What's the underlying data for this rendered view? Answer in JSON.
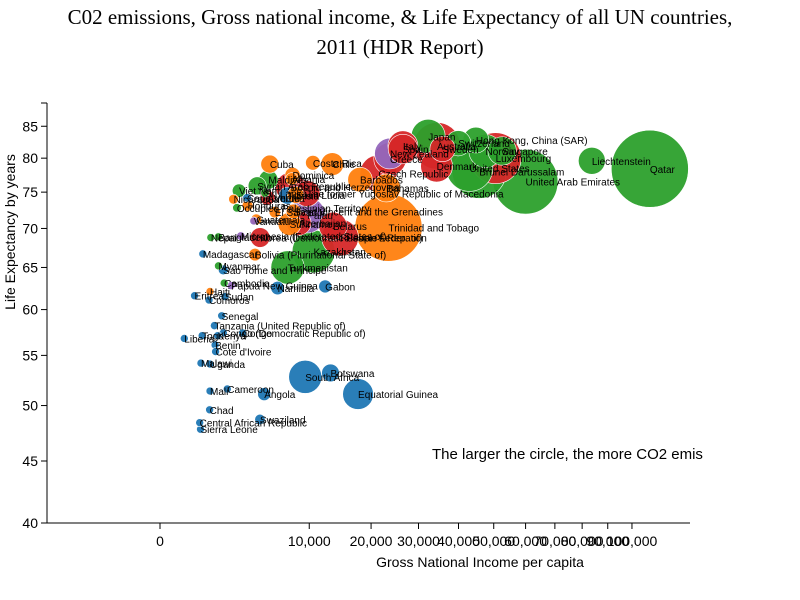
{
  "chart_data": {
    "type": "scatter",
    "title_line1": "C02 emissions, Gross national income, & Life Expectancy of all UN countries,",
    "title_line2": "2011 (HDR Report)",
    "xlabel": "Gross National Income per capita",
    "ylabel": "Life Expectancy by years",
    "annotation": "The larger the circle, the more CO2 emis",
    "y_ticks": [
      40,
      45,
      50,
      55,
      60,
      65,
      70,
      75,
      80,
      85
    ],
    "x_ticks": [
      0,
      10000,
      20000,
      30000,
      40000,
      50000,
      60000,
      70000,
      80000,
      90000,
      100000
    ],
    "x_tick_labels": [
      "0",
      "10,000",
      "20,000",
      "30,000",
      "40,000",
      "50,000",
      "60,000",
      "70,000",
      "80,000",
      "90,000",
      "100,000"
    ],
    "colors": {
      "blue": "#1f77b4",
      "green": "#2ca02c",
      "orange": "#ff7f0e",
      "red": "#d62728",
      "purple": "#9467bd"
    },
    "points": [
      {
        "name": "Japan",
        "gni": 32295,
        "life": 83.4,
        "co2": 9.5,
        "color": "green"
      },
      {
        "name": "Hong Kong, China (SAR)",
        "gni": 44805,
        "life": 82.8,
        "co2": 5.5,
        "color": "green"
      },
      {
        "name": "Switzerland",
        "gni": 39924,
        "life": 82.3,
        "co2": 5.3,
        "color": "green"
      },
      {
        "name": "Italy",
        "gni": 26484,
        "life": 81.9,
        "co2": 7.4,
        "color": "red"
      },
      {
        "name": "Australia",
        "gni": 34431,
        "life": 81.9,
        "co2": 18.1,
        "color": "red"
      },
      {
        "name": "Spain",
        "gni": 26508,
        "life": 81.4,
        "co2": 7.2,
        "color": "red"
      },
      {
        "name": "Singapore",
        "gni": 52569,
        "life": 81.1,
        "co2": 6.7,
        "color": "green"
      },
      {
        "name": "Sweden",
        "gni": 35837,
        "life": 81.4,
        "co2": 5.3,
        "color": "red"
      },
      {
        "name": "Norway",
        "gni": 47557,
        "life": 81.1,
        "co2": 9.1,
        "color": "green"
      },
      {
        "name": "New Zealand",
        "gni": 23737,
        "life": 80.7,
        "co2": 7.8,
        "color": "purple"
      },
      {
        "name": "Greece",
        "gni": 23747,
        "life": 79.9,
        "co2": 8.7,
        "color": "red"
      },
      {
        "name": "Luxembourg",
        "gni": 50557,
        "life": 80.0,
        "co2": 21.5,
        "color": "red"
      },
      {
        "name": "Liechtenstein",
        "gni": 83717,
        "life": 79.6,
        "co2": 6.0,
        "color": "green"
      },
      {
        "name": "Qatar",
        "gni": 107721,
        "life": 78.4,
        "co2": 49.1,
        "color": "green"
      },
      {
        "name": "Costa Rica",
        "gni": 10497,
        "life": 79.3,
        "co2": 1.8,
        "color": "orange"
      },
      {
        "name": "Chile",
        "gni": 13329,
        "life": 79.1,
        "co2": 4.3,
        "color": "orange"
      },
      {
        "name": "United States",
        "gni": 43017,
        "life": 78.5,
        "co2": 17.9,
        "color": "green"
      },
      {
        "name": "Brunei Darussalam",
        "gni": 45753,
        "life": 78.0,
        "co2": 24.0,
        "color": "green"
      },
      {
        "name": "Denmark",
        "gni": 34347,
        "life": 78.8,
        "co2": 8.4,
        "color": "red"
      },
      {
        "name": "Czech Republic",
        "gni": 21405,
        "life": 77.7,
        "co2": 11.2,
        "color": "red"
      },
      {
        "name": "United Arab Emirates",
        "gni": 59993,
        "life": 76.5,
        "co2": 34.6,
        "color": "green"
      },
      {
        "name": "Cuba",
        "gni": 5416,
        "life": 79.1,
        "co2": 2.7,
        "color": "orange"
      },
      {
        "name": "Dominica",
        "gni": 7889,
        "life": 77.5,
        "co2": 1.9,
        "color": "orange"
      },
      {
        "name": "Albania",
        "gni": 7803,
        "life": 76.9,
        "co2": 1.3,
        "color": "orange"
      },
      {
        "name": "Maldives",
        "gni": 5276,
        "life": 76.8,
        "co2": 3.0,
        "color": "green"
      },
      {
        "name": "Barbados",
        "gni": 17966,
        "life": 76.8,
        "co2": 5.0,
        "color": "orange"
      },
      {
        "name": "Syrian Arab Republic",
        "gni": 4243,
        "life": 75.9,
        "co2": 2.7,
        "color": "green"
      },
      {
        "name": "Bosnia and Herzegovina",
        "gni": 7664,
        "life": 75.7,
        "co2": 7.4,
        "color": "red"
      },
      {
        "name": "Bahamas",
        "gni": 23029,
        "life": 75.6,
        "co2": 6.5,
        "color": "orange"
      },
      {
        "name": "The former Yugoslav Republic of Macedonia",
        "gni": 9697,
        "life": 74.8,
        "co2": 5.6,
        "color": "red"
      },
      {
        "name": "Viet Nam",
        "gni": 2805,
        "life": 75.2,
        "co2": 1.5,
        "color": "green"
      },
      {
        "name": "Sri Lanka",
        "gni": 4943,
        "life": 74.9,
        "co2": 0.6,
        "color": "green"
      },
      {
        "name": "Cape Verde",
        "gni": 3402,
        "life": 74.2,
        "co2": 0.6,
        "color": "blue"
      },
      {
        "name": "Nicaragua",
        "gni": 2430,
        "life": 74.0,
        "co2": 0.8,
        "color": "orange"
      },
      {
        "name": "Honduras",
        "gni": 3443,
        "life": 73.1,
        "co2": 1.0,
        "color": "orange"
      },
      {
        "name": "Armenia",
        "gni": 5188,
        "life": 74.2,
        "co2": 1.8,
        "color": "red"
      },
      {
        "name": "Tunisia",
        "gni": 7281,
        "life": 74.5,
        "co2": 2.4,
        "color": "blue"
      },
      {
        "name": "Saint Lucia",
        "gni": 8273,
        "life": 74.6,
        "co2": 2.3,
        "color": "orange"
      },
      {
        "name": "Occupied Palestinian Territory",
        "gni": 2656,
        "life": 72.8,
        "co2": 0.6,
        "color": "green"
      },
      {
        "name": "El Salvador",
        "gni": 5925,
        "life": 72.2,
        "co2": 1.1,
        "color": "orange"
      },
      {
        "name": "Saint Vincent and the Grenadines",
        "gni": 8013,
        "life": 72.3,
        "co2": 1.8,
        "color": "orange"
      },
      {
        "name": "Palau",
        "gni": 9744,
        "life": 71.8,
        "co2": 10.6,
        "color": "purple"
      },
      {
        "name": "Vanuatu",
        "gni": 3950,
        "life": 71.0,
        "co2": 0.4,
        "color": "purple"
      },
      {
        "name": "Guatemala",
        "gni": 4167,
        "life": 71.2,
        "co2": 1.0,
        "color": "orange"
      },
      {
        "name": "Suriname",
        "gni": 7538,
        "life": 70.6,
        "co2": 4.4,
        "color": "orange"
      },
      {
        "name": "Azerbaijan",
        "gni": 8666,
        "life": 70.7,
        "co2": 4.9,
        "color": "red"
      },
      {
        "name": "Trinidad and Tobago",
        "gni": 23439,
        "life": 70.1,
        "co2": 37.3,
        "color": "orange"
      },
      {
        "name": "Belarus",
        "gni": 13439,
        "life": 70.3,
        "co2": 6.5,
        "color": "red"
      },
      {
        "name": "Russian Federation",
        "gni": 14561,
        "life": 68.8,
        "co2": 11.2,
        "color": "red"
      },
      {
        "name": "Kazakhstan",
        "gni": 10585,
        "life": 67.0,
        "co2": 15.1,
        "color": "green"
      },
      {
        "name": "Turkmenistan",
        "gni": 7306,
        "life": 65.0,
        "co2": 9.2,
        "color": "green"
      },
      {
        "name": "Bolivia (Plurinational State of)",
        "gni": 4054,
        "life": 66.6,
        "co2": 1.3,
        "color": "orange"
      },
      {
        "name": "Korea (Democratic People's Rep. of)",
        "gni": 4499,
        "life": 68.8,
        "co2": 3.2,
        "color": "red"
      },
      {
        "name": "Micronesia (Federated States of)",
        "gni": 2935,
        "life": 69.0,
        "co2": 0.6,
        "color": "purple"
      },
      {
        "name": "Bangladesh",
        "gni": 1529,
        "life": 68.9,
        "co2": 0.3,
        "color": "green"
      },
      {
        "name": "Nepal",
        "gni": 1160,
        "life": 68.8,
        "co2": 0.1,
        "color": "green"
      },
      {
        "name": "Madagascar",
        "gni": 824,
        "life": 66.7,
        "co2": 0.1,
        "color": "blue"
      },
      {
        "name": "Myanmar",
        "gni": 1535,
        "life": 65.2,
        "co2": 0.3,
        "color": "green"
      },
      {
        "name": "Sao Tome and Principe",
        "gni": 1792,
        "life": 64.7,
        "co2": 0.8,
        "color": "blue"
      },
      {
        "name": "Cambodia",
        "gni": 1848,
        "life": 63.1,
        "co2": 0.3,
        "color": "green"
      },
      {
        "name": "Papua New Guinea",
        "gni": 2271,
        "life": 62.8,
        "co2": 0.5,
        "color": "purple"
      },
      {
        "name": "Haiti",
        "gni": 1123,
        "life": 62.1,
        "co2": 0.2,
        "color": "orange"
      },
      {
        "name": "Sudan",
        "gni": 1894,
        "life": 61.5,
        "co2": 0.3,
        "color": "blue"
      },
      {
        "name": "Eritrea",
        "gni": 536,
        "life": 61.6,
        "co2": 0.1,
        "color": "blue"
      },
      {
        "name": "Comoros",
        "gni": 1079,
        "life": 61.1,
        "co2": 0.2,
        "color": "blue"
      },
      {
        "name": "Namibia",
        "gni": 6206,
        "life": 62.5,
        "co2": 1.5,
        "color": "blue"
      },
      {
        "name": "Gabon",
        "gni": 12249,
        "life": 62.7,
        "co2": 1.4,
        "color": "blue"
      },
      {
        "name": "Senegal",
        "gni": 1708,
        "life": 59.3,
        "co2": 0.4,
        "color": "blue"
      },
      {
        "name": "Congo (Democratic Republic of)",
        "gni": 1800,
        "life": 57.4,
        "co2": 0.5,
        "color": "blue"
      },
      {
        "name": "Benin",
        "gni": 1364,
        "life": 56.1,
        "co2": 0.4,
        "color": "blue"
      },
      {
        "name": "Liberia",
        "gni": 265,
        "life": 56.8,
        "co2": 0.2,
        "color": "blue"
      },
      {
        "name": "Kenya",
        "gni": 1492,
        "life": 57.1,
        "co2": 0.3,
        "color": "blue"
      },
      {
        "name": "Togo",
        "gni": 798,
        "life": 57.1,
        "co2": 0.2,
        "color": "blue"
      },
      {
        "name": "Uganda",
        "gni": 1124,
        "life": 54.1,
        "co2": 0.1,
        "color": "blue"
      },
      {
        "name": "Tanzania (United Republic of)",
        "gni": 1328,
        "life": 58.2,
        "co2": 0.1,
        "color": "blue"
      },
      {
        "name": "Cote d'Ivoire",
        "gni": 1387,
        "life": 55.4,
        "co2": 0.3,
        "color": "blue"
      },
      {
        "name": "Malawi",
        "gni": 753,
        "life": 54.2,
        "co2": 0.1,
        "color": "blue"
      },
      {
        "name": "Cameroon",
        "gni": 2031,
        "life": 51.6,
        "co2": 0.3,
        "color": "blue"
      },
      {
        "name": "Angola",
        "gni": 4874,
        "life": 51.1,
        "co2": 1.4,
        "color": "blue"
      },
      {
        "name": "Sierra Leone",
        "gni": 737,
        "life": 47.8,
        "co2": 0.2,
        "color": "blue"
      },
      {
        "name": "Mali",
        "gni": 1123,
        "life": 51.4,
        "co2": 0.1,
        "color": "blue"
      },
      {
        "name": "Chad",
        "gni": 1105,
        "life": 49.6,
        "co2": 0.1,
        "color": "blue"
      },
      {
        "name": "Congo",
        "gni": 3066,
        "life": 57.4,
        "co2": 0.4,
        "color": "blue"
      },
      {
        "name": "Central African Republic",
        "gni": 707,
        "life": 48.4,
        "co2": 0.1,
        "color": "blue"
      },
      {
        "name": "Swaziland",
        "gni": 4484,
        "life": 48.7,
        "co2": 0.9,
        "color": "blue"
      },
      {
        "name": "South Africa",
        "gni": 9469,
        "life": 52.8,
        "co2": 9.0,
        "color": "blue"
      },
      {
        "name": "Botswana",
        "gni": 13049,
        "life": 53.2,
        "co2": 2.6,
        "color": "blue"
      },
      {
        "name": "Equatorial Guinea",
        "gni": 17608,
        "life": 51.1,
        "co2": 7.8,
        "color": "blue"
      }
    ]
  }
}
